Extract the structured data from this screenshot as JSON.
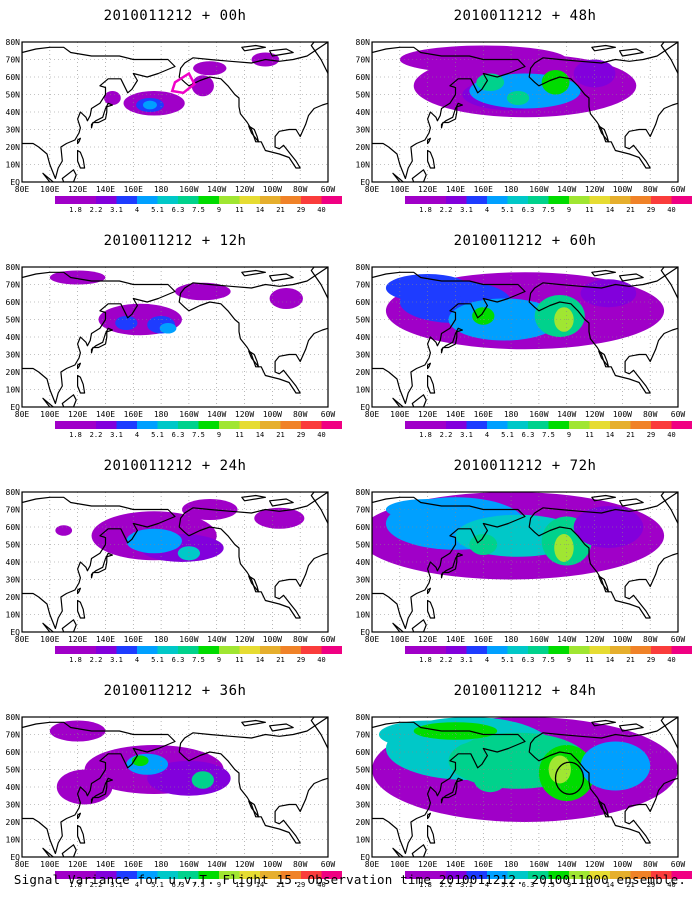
{
  "panels": [
    {
      "title": "2010011212 + 00h",
      "lead_hours": 0
    },
    {
      "title": "2010011212 + 48h",
      "lead_hours": 48
    },
    {
      "title": "2010011212 + 12h",
      "lead_hours": 12
    },
    {
      "title": "2010011212 + 60h",
      "lead_hours": 60
    },
    {
      "title": "2010011212 + 24h",
      "lead_hours": 24
    },
    {
      "title": "2010011212 + 72h",
      "lead_hours": 72
    },
    {
      "title": "2010011212 + 36h",
      "lead_hours": 36
    },
    {
      "title": "2010011212 + 84h",
      "lead_hours": 84
    }
  ],
  "lon_labels": [
    "80E",
    "100E",
    "120E",
    "140E",
    "160E",
    "180",
    "160W",
    "140W",
    "120W",
    "100W",
    "80W",
    "60W"
  ],
  "lat_labels": [
    "80N",
    "70N",
    "60N",
    "50N",
    "40N",
    "30N",
    "20N",
    "10N",
    "EQ"
  ],
  "colorbar": {
    "levels": [
      "1.8",
      "2.2",
      "3.1",
      "4",
      "5.1",
      "6.3",
      "7.5",
      "9",
      "11",
      "14",
      "21",
      "29",
      "40"
    ],
    "colors": [
      "#a000c8",
      "#8200dc",
      "#1e3cff",
      "#00a0ff",
      "#00c8c8",
      "#00d28c",
      "#00dc00",
      "#a0e632",
      "#e6dc32",
      "#e6af2d",
      "#f08228",
      "#fa3c3c",
      "#f00082"
    ]
  },
  "footer": "Signal Variance for u,v,T. Flight 15. Observation time 2010011212. 2010011000 ensemble."
}
